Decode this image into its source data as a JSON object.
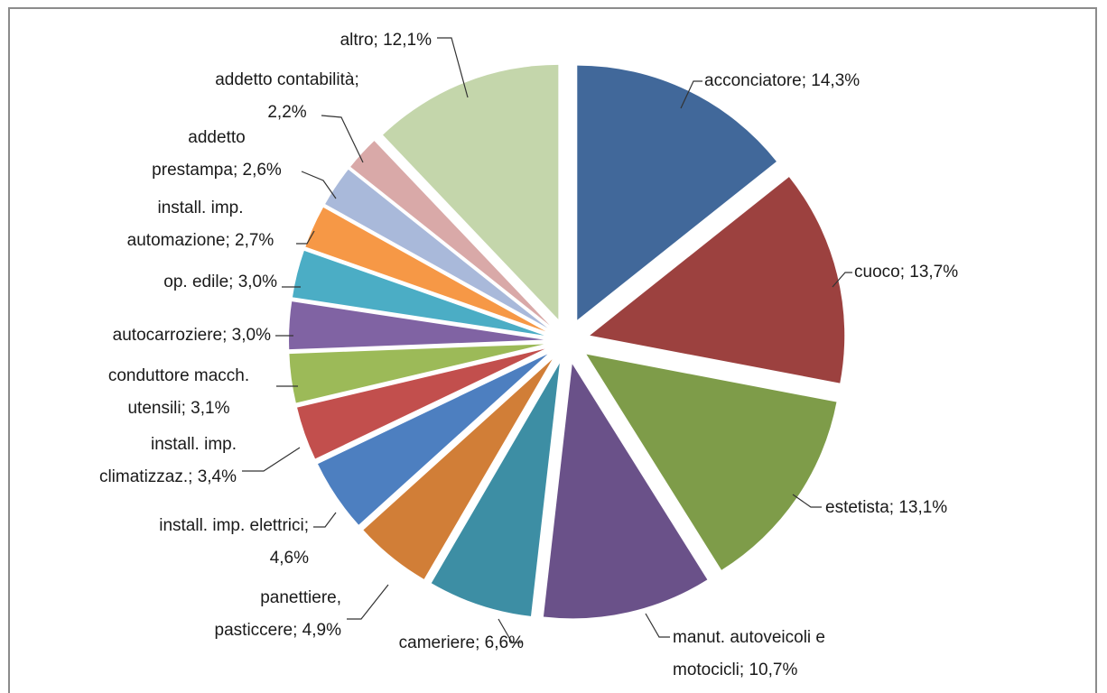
{
  "chart_data": {
    "type": "pie",
    "exploded": true,
    "slices": [
      {
        "label": "acconciatore",
        "value": 14.3,
        "text": "acconciatore; 14,3%",
        "color": "#41689a"
      },
      {
        "label": "cuoco",
        "value": 13.7,
        "text": "cuoco; 13,7%",
        "color": "#9c413f"
      },
      {
        "label": "estetista",
        "value": 13.1,
        "text": "estetista; 13,1%",
        "color": "#7e9c49"
      },
      {
        "label": "manut. autoveicoli e motocicli",
        "value": 10.7,
        "text": "manut. autoveicoli e motocicli; 10,7%",
        "color": "#6a5189"
      },
      {
        "label": "cameriere",
        "value": 6.6,
        "text": "cameriere; 6,6%",
        "color": "#3d8ea4"
      },
      {
        "label": "panettiere, pasticcere",
        "value": 4.9,
        "text": "panettiere, pasticcere; 4,9%",
        "color": "#d17e37"
      },
      {
        "label": "install. imp. elettrici",
        "value": 4.6,
        "text": "install. imp. elettrici; 4,6%",
        "color": "#4d7fc0"
      },
      {
        "label": "install. imp. climatizzaz.",
        "value": 3.4,
        "text": "install. imp. climatizzaz.; 3,4%",
        "color": "#c24f4d"
      },
      {
        "label": "conduttore macch. utensili",
        "value": 3.1,
        "text": "conduttore macch. utensili; 3,1%",
        "color": "#9cba58"
      },
      {
        "label": "autocarroziere",
        "value": 3.0,
        "text": "autocarroziere; 3,0%",
        "color": "#8063a3"
      },
      {
        "label": "op. edile",
        "value": 3.0,
        "text": "op. edile; 3,0%",
        "color": "#4badc5"
      },
      {
        "label": "install. imp. automazione",
        "value": 2.7,
        "text": "install. imp. automazione; 2,7%",
        "color": "#f69846"
      },
      {
        "label": "addetto prestampa",
        "value": 2.6,
        "text": "addetto prestampa; 2,6%",
        "color": "#a9b9da"
      },
      {
        "label": "addetto contabilità",
        "value": 2.2,
        "text": "addetto contabilità; 2,2%",
        "color": "#d9a9a8"
      },
      {
        "label": "altro",
        "value": 12.1,
        "text": "altro; 12,1%",
        "color": "#c4d6ab"
      }
    ],
    "label_lines": [
      [
        "acconciatore; 14,3%"
      ],
      [
        "cuoco; 13,7%"
      ],
      [
        "estetista; 13,1%"
      ],
      [
        "manut. autoveicoli e",
        "motocicli; 10,7%"
      ],
      [
        "cameriere; 6,6%"
      ],
      [
        "panettiere,",
        "pasticcere; 4,9%"
      ],
      [
        "install. imp. elettrici;",
        "4,6%"
      ],
      [
        "install. imp.",
        "climatizzaz.; 3,4%"
      ],
      [
        "conduttore macch.",
        "utensili; 3,1%"
      ],
      [
        "autocarroziere; 3,0%"
      ],
      [
        "op. edile; 3,0%"
      ],
      [
        "install. imp.",
        "automazione; 2,7%"
      ],
      [
        "addetto",
        "prestampa; 2,6%"
      ],
      [
        "addetto contabilità;",
        "2,2%"
      ],
      [
        "altro; 12,1%"
      ]
    ]
  }
}
